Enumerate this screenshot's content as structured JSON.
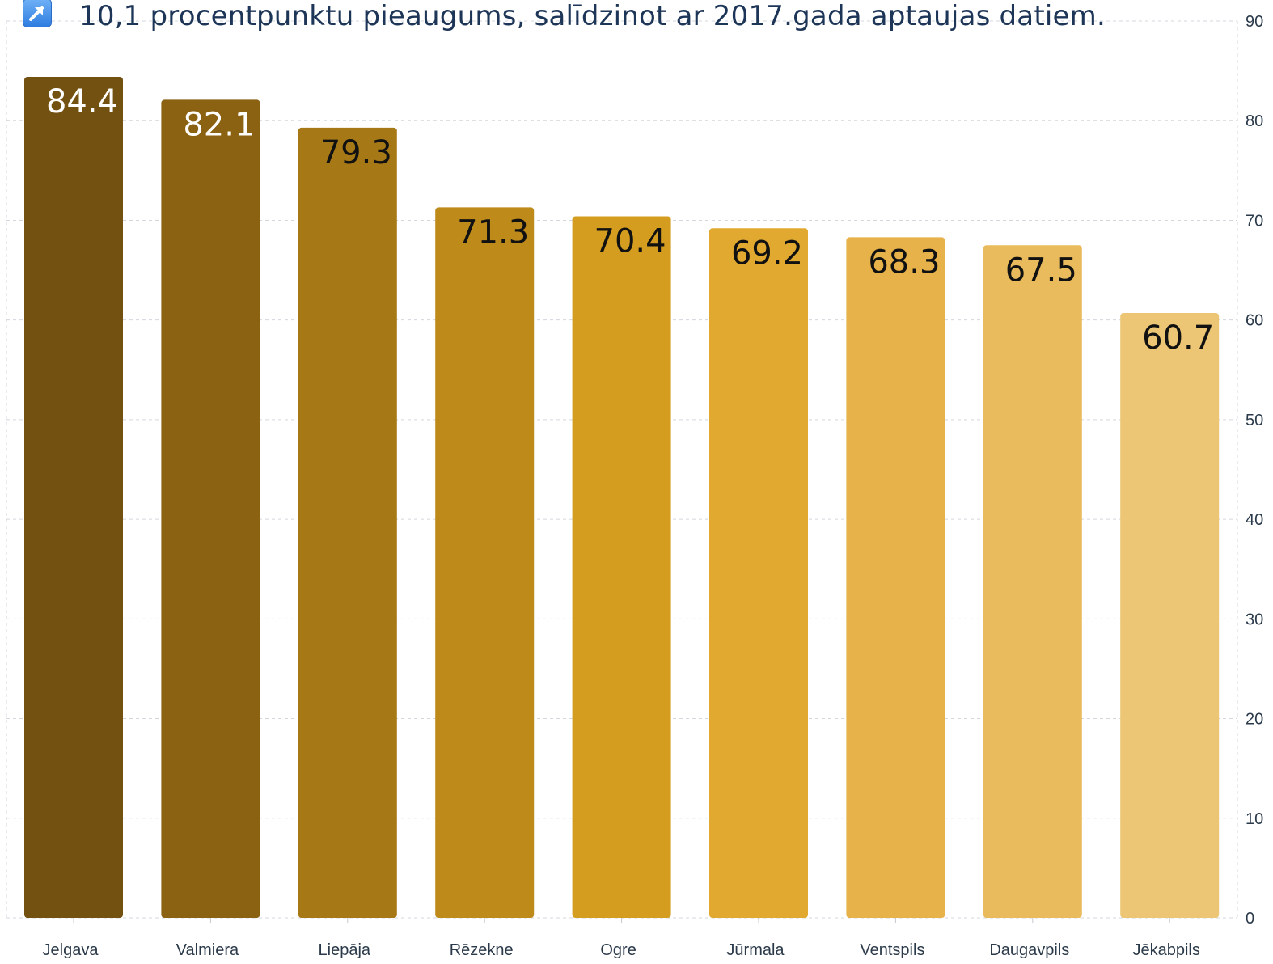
{
  "annotation": {
    "icon": "arrow-up-right-icon",
    "text": "10,1 procentpunktu pieaugums, salīdzinot ar 2017.gada aptaujas datiem."
  },
  "chart_data": {
    "type": "bar",
    "title": "",
    "xlabel": "",
    "ylabel": "",
    "categories": [
      "Jelgava",
      "Valmiera",
      "Liepāja",
      "Rēzekne",
      "Ogre",
      "Jūrmala",
      "Ventspils",
      "Daugavpils",
      "Jēkabpils"
    ],
    "values": [
      84.4,
      82.1,
      79.3,
      71.3,
      70.4,
      69.2,
      68.3,
      67.5,
      60.7
    ],
    "value_labels": [
      "84.4",
      "82.1",
      "79.3",
      "71.3",
      "70.4",
      "69.2",
      "68.3",
      "67.5",
      "60.7"
    ],
    "ylim": [
      0,
      90
    ],
    "yticks": [
      0,
      10,
      20,
      30,
      40,
      50,
      60,
      70,
      80,
      90
    ],
    "y_axis_side": "right",
    "grid": true,
    "legend": "none",
    "colors": [
      "#735110",
      "#8b6112",
      "#a67816",
      "#be8a1a",
      "#d49d20",
      "#e1a92f",
      "#e7b24a",
      "#e9bb5c",
      "#ecc674"
    ],
    "label_colors": [
      "#ffffff",
      "#ffffff",
      "#111111",
      "#111111",
      "#111111",
      "#111111",
      "#111111",
      "#111111",
      "#111111"
    ],
    "grid_color": "#d3d7dc"
  }
}
